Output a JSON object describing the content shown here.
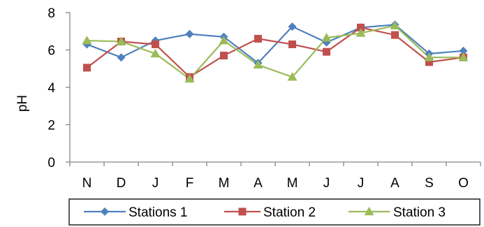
{
  "chart_data": {
    "type": "line",
    "categories": [
      "N",
      "D",
      "J",
      "F",
      "M",
      "A",
      "M",
      "J",
      "J",
      "A",
      "S",
      "O"
    ],
    "ylabel": "pH",
    "xlabel": "",
    "ylim": [
      0,
      8
    ],
    "yticks": [
      "0",
      "2",
      "4",
      "6",
      "8"
    ],
    "grid": false,
    "legend_position": "bottom",
    "series": [
      {
        "name": "Stations 1",
        "color": "#4F81BD",
        "marker": "diamond",
        "values": [
          6.3,
          5.6,
          6.5,
          6.85,
          6.7,
          5.3,
          7.25,
          6.4,
          7.2,
          7.35,
          5.8,
          5.95
        ]
      },
      {
        "name": "Station 2",
        "color": "#C0504D",
        "marker": "square",
        "values": [
          5.05,
          6.45,
          6.3,
          4.55,
          5.7,
          6.6,
          6.3,
          5.9,
          7.2,
          6.8,
          5.35,
          5.6
        ]
      },
      {
        "name": "Station 3",
        "color": "#9BBB59",
        "marker": "triangle",
        "values": [
          6.5,
          6.45,
          5.8,
          4.45,
          6.5,
          5.2,
          4.55,
          6.65,
          6.9,
          7.3,
          5.6,
          5.6
        ]
      }
    ]
  }
}
